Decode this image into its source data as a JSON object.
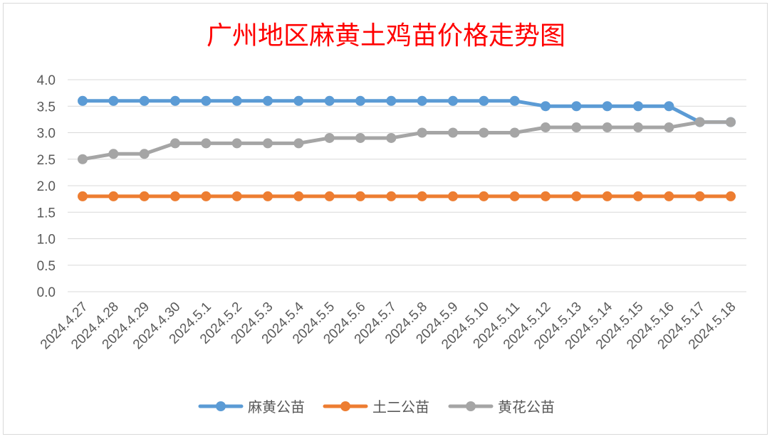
{
  "chart_data": {
    "type": "line",
    "title": "广州地区麻黄土鸡苗价格走势图",
    "categories": [
      "2024.4.27",
      "2024.4.28",
      "2024.4.29",
      "2024.4.30",
      "2024.5.1",
      "2024.5.2",
      "2024.5.3",
      "2024.5.4",
      "2024.5.5",
      "2024.5.6",
      "2024.5.7",
      "2024.5.8",
      "2024.5.9",
      "2024.5.10",
      "2024.5.11",
      "2024.5.12",
      "2024.5.13",
      "2024.5.14",
      "2024.5.15",
      "2024.5.16",
      "2024.5.17",
      "2024.5.18"
    ],
    "series": [
      {
        "name": "麻黄公苗",
        "color": "#5b9bd5",
        "values": [
          3.6,
          3.6,
          3.6,
          3.6,
          3.6,
          3.6,
          3.6,
          3.6,
          3.6,
          3.6,
          3.6,
          3.6,
          3.6,
          3.6,
          3.6,
          3.5,
          3.5,
          3.5,
          3.5,
          3.5,
          3.2,
          3.2
        ]
      },
      {
        "name": "土二公苗",
        "color": "#ed7d31",
        "values": [
          1.8,
          1.8,
          1.8,
          1.8,
          1.8,
          1.8,
          1.8,
          1.8,
          1.8,
          1.8,
          1.8,
          1.8,
          1.8,
          1.8,
          1.8,
          1.8,
          1.8,
          1.8,
          1.8,
          1.8,
          1.8,
          1.8
        ]
      },
      {
        "name": "黄花公苗",
        "color": "#a5a5a5",
        "values": [
          2.5,
          2.6,
          2.6,
          2.8,
          2.8,
          2.8,
          2.8,
          2.8,
          2.9,
          2.9,
          2.9,
          3.0,
          3.0,
          3.0,
          3.0,
          3.1,
          3.1,
          3.1,
          3.1,
          3.1,
          3.2,
          3.2
        ]
      }
    ],
    "ylim": [
      0,
      4
    ],
    "yticks": [
      "0.0",
      "0.5",
      "1.0",
      "1.5",
      "2.0",
      "2.5",
      "3.0",
      "3.5",
      "4.0"
    ],
    "ytick_values": [
      0,
      0.5,
      1,
      1.5,
      2,
      2.5,
      3,
      3.5,
      4
    ],
    "grid": true,
    "legend_position": "bottom"
  }
}
